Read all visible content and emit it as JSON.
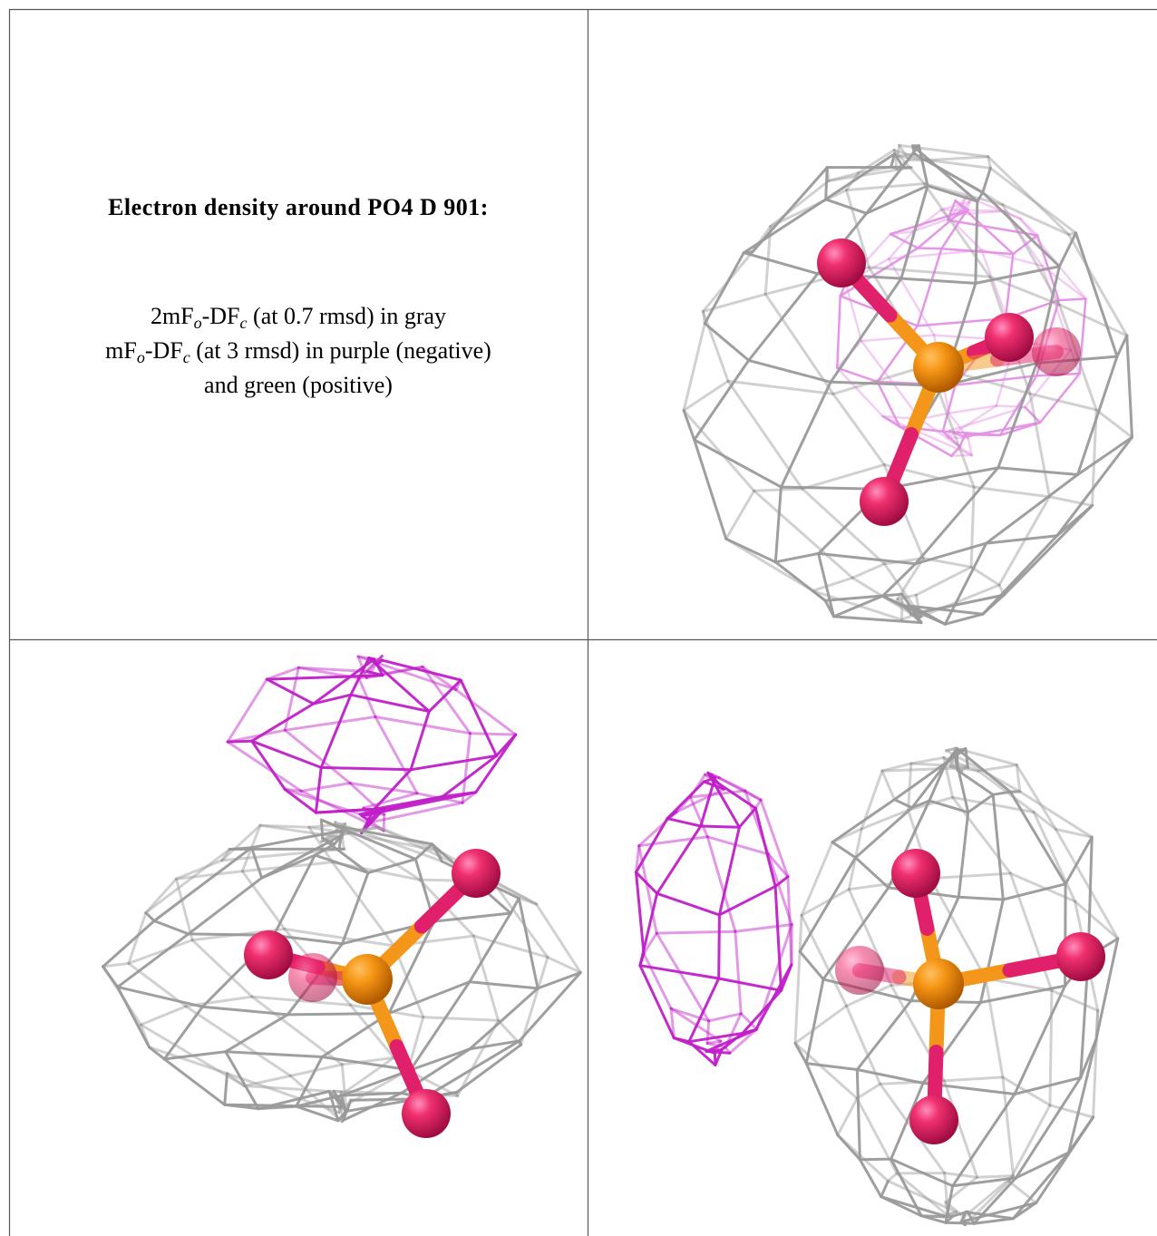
{
  "figure": {
    "title": "Electron density around PO4 D 901:",
    "legend": [
      [
        "2mF",
        "o",
        "-DF",
        "c",
        " (at 0.7 rmsd) in gray"
      ],
      [
        "mF",
        "o",
        "-DF",
        "c",
        " (at 3 rmsd) in purple (negative)"
      ],
      [
        "and green (positive)"
      ]
    ]
  }
}
